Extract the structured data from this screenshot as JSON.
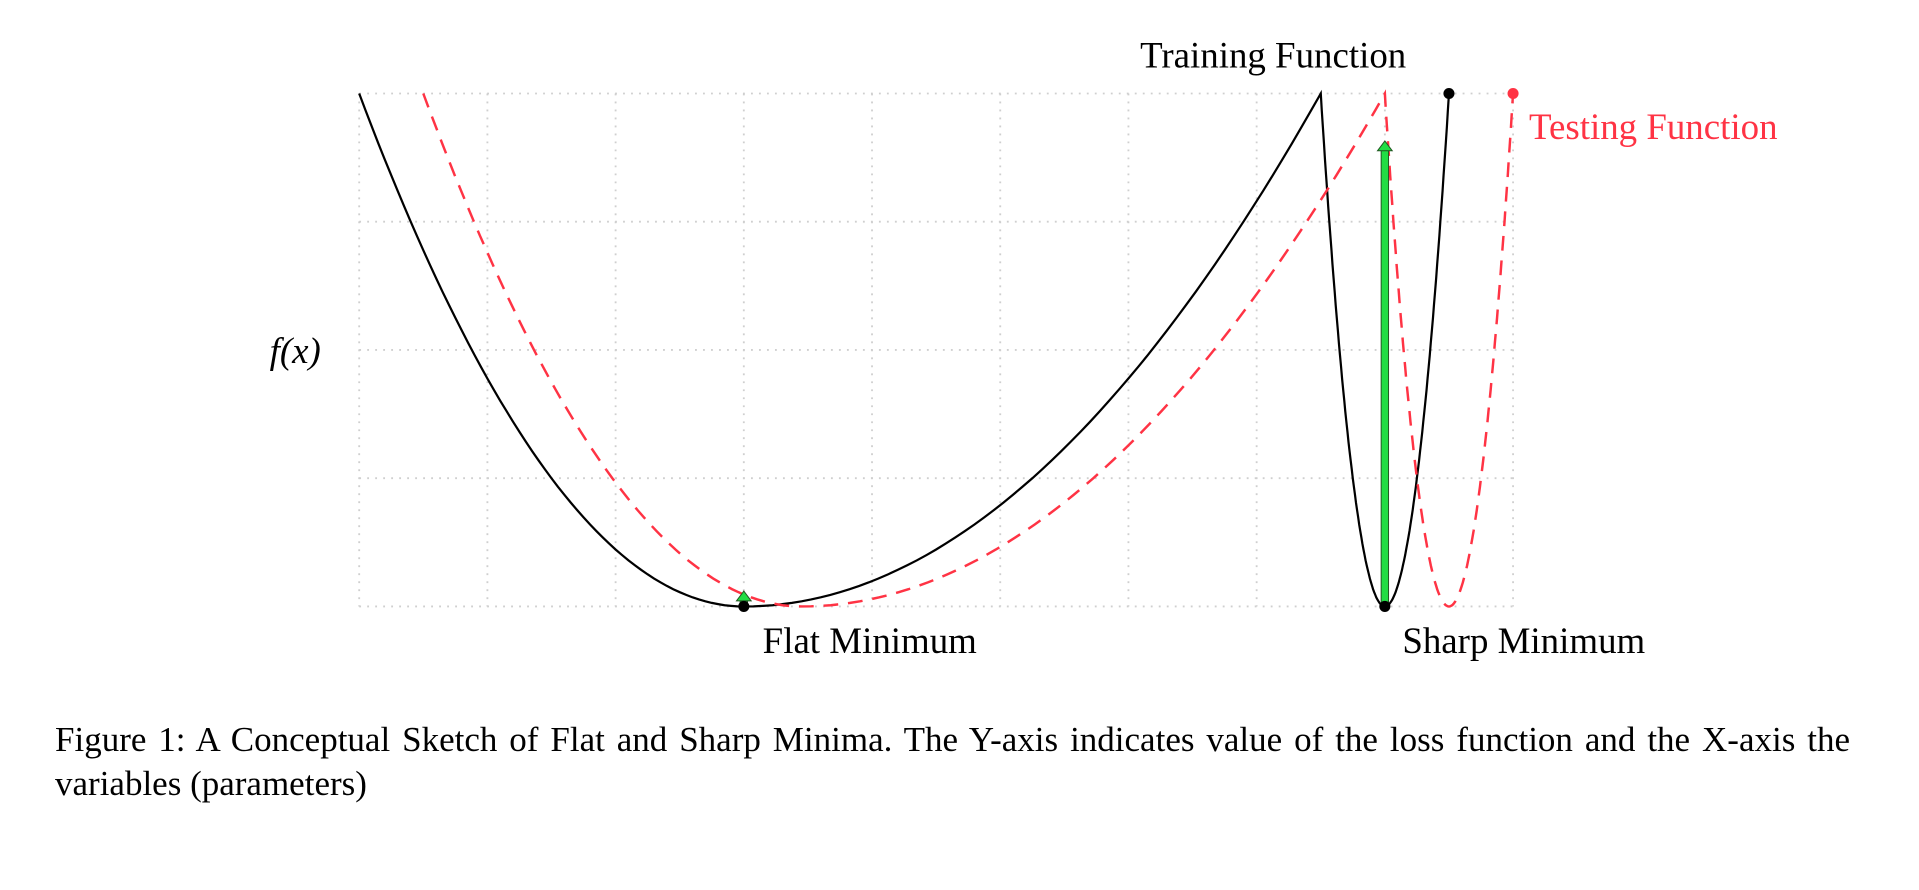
{
  "chart_data": {
    "type": "line",
    "curve_shape": "piecewise parabolic",
    "title": "",
    "xlabel": "",
    "ylabel": "f(x)",
    "xlim": [
      0,
      9
    ],
    "ylim": [
      0,
      4
    ],
    "grid": true,
    "grid_style": "dotted",
    "series": [
      {
        "name": "Training Function",
        "color": "#000000",
        "style": "solid",
        "points": [
          [
            0,
            4
          ],
          [
            3,
            0
          ],
          [
            7.5,
            4
          ],
          [
            8,
            0
          ],
          [
            8.5,
            4
          ]
        ]
      },
      {
        "name": "Testing Function",
        "color": "#ff3344",
        "style": "dashed",
        "points": [
          [
            0.5,
            4
          ],
          [
            3.45,
            0
          ],
          [
            8,
            4
          ],
          [
            8.5,
            0
          ],
          [
            9,
            4
          ]
        ]
      }
    ],
    "markers": [
      {
        "x": 3,
        "y": 0,
        "color": "#000000"
      },
      {
        "x": 8,
        "y": 0,
        "color": "#000000"
      },
      {
        "x": 8.5,
        "y": 4,
        "color": "#000000"
      },
      {
        "x": 9,
        "y": 4,
        "color": "#ff3344"
      }
    ],
    "arrows": [
      {
        "x": 3,
        "from": 0,
        "to": 0.12,
        "color": "#22dd44"
      },
      {
        "x": 8,
        "from": 0,
        "to": 3.63,
        "color": "#22dd44"
      }
    ],
    "annotations": {
      "training": "Training Function",
      "testing": "Testing Function",
      "flat": "Flat Minimum",
      "sharp": "Sharp Minimum"
    }
  },
  "caption": {
    "line1": "Figure 1: A Conceptual Sketch of Flat and Sharp Minima. The Y-axis indicates value of the loss",
    "line2": "function and the X-axis the variables (parameters)"
  }
}
